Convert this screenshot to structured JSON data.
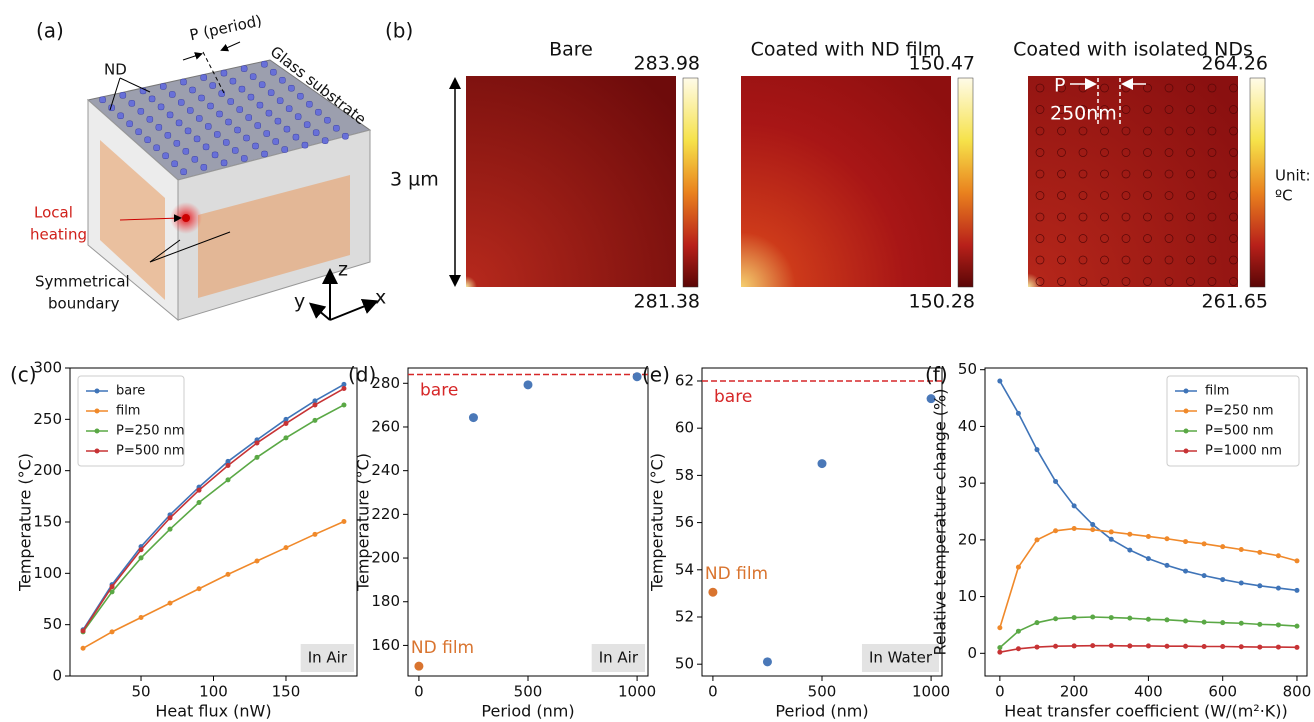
{
  "schematic": {
    "panel_label": "(a)",
    "nd": "ND",
    "period": "P (period)",
    "substrate": "Glass substrate",
    "heating": [
      "Local",
      "heating"
    ],
    "boundary": [
      "Symmetrical",
      "boundary"
    ],
    "axes": [
      "z",
      "y",
      "x"
    ]
  },
  "heatmaps": {
    "panel_label": "(b)",
    "size_label": "3 µm",
    "unit": [
      "Unit:",
      "ºC"
    ],
    "period_label": "P",
    "period_value": "250nm",
    "panels": [
      {
        "title": "Bare",
        "max": 283.98,
        "min": 281.38
      },
      {
        "title": "Coated with ND film",
        "max": 150.47,
        "min": 150.28
      },
      {
        "title": "Coated with isolated NDs",
        "max": 264.26,
        "min": 261.65
      }
    ]
  },
  "chart_data": [
    {
      "type": "line",
      "panel_label": "(c)",
      "x_label": "Heat flux (nW)",
      "y_label": "Temperature (°C)",
      "x": [
        10,
        30,
        50,
        70,
        90,
        110,
        130,
        150,
        170,
        190
      ],
      "series": [
        {
          "name": "bare",
          "color": "#3f74b8",
          "values": [
            45,
            89,
            126,
            157,
            184,
            209,
            230,
            250,
            268,
            284
          ]
        },
        {
          "name": "film",
          "color": "#f0892a",
          "values": [
            27,
            43,
            57,
            71,
            85,
            99,
            112,
            125,
            138,
            150.5
          ]
        },
        {
          "name": "P=250 nm",
          "color": "#5aa845",
          "values": [
            43,
            82,
            115,
            143,
            169,
            191,
            213,
            232,
            249,
            264
          ]
        },
        {
          "name": "P=500 nm",
          "color": "#c73335",
          "values": [
            44,
            87,
            123,
            154,
            181,
            205,
            227,
            246,
            264,
            280
          ]
        }
      ],
      "xlim": [
        1,
        199
      ],
      "xticks": [
        50,
        100,
        150
      ],
      "ylim": [
        0,
        300
      ],
      "yticks": [
        0,
        50,
        100,
        150,
        200,
        250,
        300
      ],
      "legend": "upper left",
      "annotation": "In Air"
    },
    {
      "type": "scatter",
      "panel_label": "(d)",
      "x_label": "Period (nm)",
      "y_label": "Temperature (°C)",
      "series": [
        {
          "color": "#4a78b8",
          "x": [
            250,
            500,
            1000
          ],
          "values": [
            264.3,
            279.3,
            283
          ]
        },
        {
          "color": "#d9742f",
          "x": [
            0
          ],
          "values": [
            150.5
          ],
          "label": "ND film"
        }
      ],
      "reference": {
        "label": "bare",
        "value": 284,
        "color": "#d62728"
      },
      "xlim": [
        -50,
        1050
      ],
      "xticks": [
        0,
        500,
        1000
      ],
      "ylim": [
        146,
        287
      ],
      "yticks": [
        160,
        180,
        200,
        220,
        240,
        260,
        280
      ],
      "annotation": "In Air"
    },
    {
      "type": "scatter",
      "panel_label": "(e)",
      "x_label": "Period (nm)",
      "y_label": "Temperature (°C)",
      "series": [
        {
          "color": "#4a78b8",
          "x": [
            250,
            500,
            1000
          ],
          "values": [
            50.1,
            58.5,
            61.25
          ]
        },
        {
          "color": "#d9742f",
          "x": [
            0
          ],
          "values": [
            53.05
          ],
          "label": "ND film"
        }
      ],
      "reference": {
        "label": "bare",
        "value": 62,
        "color": "#d62728"
      },
      "xlim": [
        -50,
        1050
      ],
      "xticks": [
        0,
        500,
        1000
      ],
      "ylim": [
        49.5,
        62.55
      ],
      "yticks": [
        50,
        52,
        54,
        56,
        58,
        60,
        62
      ],
      "annotation": "In Water"
    },
    {
      "type": "line",
      "panel_label": "(f)",
      "x_label": "Heat transfer coefficient (W/(m²·K))",
      "y_label": "Relative temperature change (%)",
      "x": [
        0,
        50,
        100,
        150,
        200,
        250,
        300,
        350,
        400,
        450,
        500,
        550,
        600,
        650,
        700,
        750,
        800
      ],
      "series": [
        {
          "name": "film",
          "color": "#3f74b8",
          "values": [
            48,
            42.3,
            35.9,
            30.3,
            26,
            22.7,
            20.1,
            18.2,
            16.7,
            15.5,
            14.5,
            13.7,
            13,
            12.4,
            11.9,
            11.5,
            11.1
          ]
        },
        {
          "name": "P=250 nm",
          "color": "#f0892a",
          "values": [
            4.5,
            15.2,
            20,
            21.6,
            22,
            21.8,
            21.4,
            21,
            20.6,
            20.2,
            19.7,
            19.3,
            18.8,
            18.3,
            17.8,
            17.2,
            16.3
          ]
        },
        {
          "name": "P=500 nm",
          "color": "#5aa845",
          "values": [
            1,
            3.9,
            5.4,
            6.1,
            6.3,
            6.4,
            6.3,
            6.2,
            6,
            5.9,
            5.7,
            5.5,
            5.4,
            5.3,
            5.1,
            5,
            4.8
          ]
        },
        {
          "name": "P=1000 nm",
          "color": "#c73335",
          "values": [
            0.2,
            0.8,
            1.1,
            1.25,
            1.3,
            1.35,
            1.35,
            1.3,
            1.3,
            1.25,
            1.25,
            1.2,
            1.2,
            1.15,
            1.1,
            1.1,
            1.05
          ]
        }
      ],
      "xlim": [
        -40,
        827
      ],
      "xticks": [
        0,
        200,
        400,
        600,
        800
      ],
      "ylim": [
        -4,
        50.3
      ],
      "yticks": [
        0,
        10,
        20,
        30,
        40,
        50
      ],
      "legend": "upper right"
    }
  ]
}
